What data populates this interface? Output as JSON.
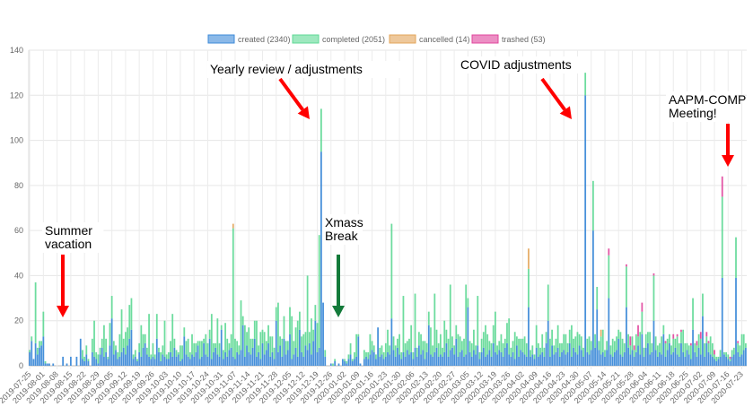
{
  "chart_data": {
    "type": "bar",
    "stacked": true,
    "x_start": "2019-07-25",
    "x_tick_labels": [
      "2019-07-25",
      "2019-08-01",
      "2019-08-08",
      "2019-08-15",
      "2019-08-22",
      "2019-08-29",
      "2019-09-05",
      "2019-09-12",
      "2019-09-19",
      "2019-09-26",
      "2019-10-03",
      "2019-10-10",
      "2019-10-17",
      "2019-10-24",
      "2019-10-31",
      "2019-11-07",
      "2019-11-14",
      "2019-11-21",
      "2019-11-28",
      "2019-12-05",
      "2019-12-12",
      "2019-12-19",
      "2019-12-26",
      "2020-01-02",
      "2020-01-09",
      "2020-01-16",
      "2020-01-23",
      "2020-01-30",
      "2020-02-06",
      "2020-02-13",
      "2020-02-20",
      "2020-02-27",
      "2020-03-05",
      "2020-03-12",
      "2020-03-19",
      "2020-03-26",
      "2020-04-02",
      "2020-04-09",
      "2020-04-16",
      "2020-04-23",
      "2020-04-30",
      "2020-05-07",
      "2020-05-14",
      "2020-05-21",
      "2020-05-28",
      "2020-06-04",
      "2020-06-11",
      "2020-06-18",
      "2020-06-25",
      "2020-07-02",
      "2020-07-09",
      "2020-07-16",
      "2020-07-23"
    ],
    "y_ticks": [
      "0",
      "20",
      "40",
      "60",
      "80",
      "100",
      "120",
      "140"
    ],
    "ylim": [
      0,
      140
    ],
    "grid": true,
    "legend_position": "top",
    "legend": [
      "created (2340)",
      "completed (2051)",
      "cancelled (14)",
      "trashed (53)"
    ],
    "colors": {
      "created": "#3d8ad8",
      "completed": "#5dd894",
      "cancelled": "#e3a458",
      "trashed": "#e0449c"
    },
    "series": [
      {
        "name": "created",
        "values": [
          6,
          11,
          3,
          10,
          5,
          8,
          9,
          13,
          1,
          1,
          1,
          0,
          1,
          0,
          0,
          0,
          0,
          4,
          0,
          1,
          0,
          4,
          0,
          0,
          4,
          0,
          12,
          3,
          2,
          5,
          2,
          0,
          6,
          4,
          3,
          1,
          5,
          8,
          4,
          6,
          3,
          9,
          21,
          5,
          7,
          3,
          4,
          6,
          8,
          5,
          9,
          12,
          16,
          3,
          4,
          2,
          6,
          4,
          8,
          10,
          5,
          4,
          3,
          4,
          3,
          12,
          6,
          2,
          5,
          4,
          3,
          3,
          6,
          4,
          8,
          4,
          5,
          2,
          3,
          13,
          5,
          4,
          3,
          5,
          4,
          6,
          9,
          3,
          4,
          10,
          5,
          4,
          12,
          3,
          6,
          8,
          5,
          4,
          16,
          3,
          6,
          4,
          7,
          8,
          4,
          3,
          6,
          5,
          7,
          18,
          4,
          9,
          6,
          5,
          8,
          12,
          4,
          6,
          3,
          10,
          5,
          7,
          10,
          4,
          6,
          3,
          20,
          6,
          9,
          4,
          12,
          5,
          7,
          14,
          3,
          5,
          8,
          4,
          16,
          6,
          4,
          9,
          7,
          10,
          5,
          11,
          20,
          6,
          8,
          95,
          28,
          4,
          0,
          0,
          1,
          0,
          2,
          0,
          1,
          0,
          3,
          2,
          1,
          3,
          5,
          2,
          3,
          4,
          13,
          1,
          0,
          3,
          4,
          3,
          5,
          7,
          6,
          3,
          17,
          4,
          5,
          3,
          4,
          6,
          5,
          21,
          7,
          4,
          8,
          5,
          3,
          6,
          4,
          7,
          5,
          6,
          3,
          8,
          4,
          9,
          5,
          7,
          3,
          6,
          18,
          5,
          4,
          6,
          8,
          4,
          5,
          4,
          6,
          10,
          4,
          7,
          8,
          5,
          12,
          4,
          6,
          7,
          4,
          5,
          26,
          6,
          4,
          7,
          5,
          9,
          3,
          6,
          8,
          4,
          5,
          7,
          4,
          10,
          6,
          5,
          7,
          6,
          4,
          8,
          10,
          5,
          4,
          6,
          3,
          9,
          4,
          7,
          6,
          5,
          4,
          26,
          4,
          5,
          3,
          8,
          4,
          5,
          6,
          4,
          10,
          20,
          4,
          9,
          5,
          6,
          8,
          4,
          6,
          7,
          5,
          6,
          10,
          4,
          8,
          6,
          5,
          9,
          7,
          4,
          120,
          6,
          5,
          7,
          60,
          8,
          25,
          7,
          5,
          6,
          4,
          7,
          30,
          5,
          4,
          6,
          7,
          12,
          5,
          4,
          6,
          26,
          8,
          5,
          7,
          4,
          6,
          9,
          5,
          14,
          4,
          8,
          10,
          5,
          6,
          20,
          7,
          4,
          6,
          5,
          14,
          4,
          7,
          10,
          5,
          6,
          8,
          5,
          4,
          10,
          6,
          4,
          7,
          5,
          3,
          16,
          6,
          4,
          8,
          5,
          22,
          4,
          10,
          6,
          5,
          4,
          3,
          2,
          3,
          4,
          39,
          5,
          4,
          3,
          2,
          4,
          5,
          39,
          6,
          4,
          5,
          7,
          8
        ]
      },
      {
        "name": "completed",
        "values": [
          1,
          2,
          0,
          27,
          3,
          3,
          2,
          11,
          1,
          0,
          0,
          0,
          0,
          0,
          0,
          0,
          0,
          0,
          0,
          0,
          0,
          0,
          0,
          0,
          0,
          0,
          0,
          4,
          2,
          4,
          1,
          0,
          6,
          16,
          3,
          4,
          3,
          4,
          14,
          6,
          1,
          10,
          10,
          6,
          2,
          3,
          10,
          19,
          4,
          10,
          8,
          15,
          14,
          2,
          3,
          1,
          4,
          14,
          6,
          4,
          3,
          19,
          2,
          6,
          2,
          11,
          2,
          4,
          4,
          16,
          2,
          3,
          5,
          19,
          4,
          3,
          1,
          7,
          6,
          4,
          6,
          8,
          3,
          9,
          6,
          4,
          2,
          8,
          7,
          2,
          9,
          6,
          4,
          20,
          4,
          2,
          16,
          6,
          2,
          4,
          13,
          8,
          3,
          6,
          57,
          9,
          5,
          4,
          22,
          4,
          14,
          6,
          11,
          7,
          4,
          8,
          16,
          3,
          12,
          6,
          10,
          4,
          8,
          9,
          7,
          5,
          6,
          22,
          4,
          8,
          10,
          6,
          4,
          12,
          19,
          6,
          9,
          16,
          8,
          7,
          10,
          6,
          33,
          5,
          16,
          5,
          7,
          13,
          50,
          19,
          0,
          3,
          0,
          0,
          0,
          1,
          1,
          0,
          0,
          0,
          0,
          1,
          1,
          2,
          5,
          1,
          3,
          10,
          1,
          0,
          0,
          4,
          2,
          3,
          9,
          4,
          3,
          2,
          0,
          4,
          4,
          3,
          6,
          10,
          4,
          42,
          6,
          5,
          4,
          9,
          3,
          25,
          6,
          4,
          7,
          12,
          3,
          24,
          4,
          6,
          9,
          4,
          8,
          4,
          6,
          12,
          5,
          26,
          8,
          6,
          9,
          4,
          14,
          6,
          8,
          29,
          5,
          4,
          6,
          10,
          7,
          4,
          8,
          31,
          4,
          5,
          6,
          9,
          4,
          22,
          3,
          6,
          7,
          14,
          9,
          4,
          6,
          8,
          18,
          4,
          4,
          8,
          6,
          4,
          9,
          16,
          4,
          5,
          12,
          4,
          8,
          5,
          6,
          8,
          6,
          17,
          3,
          4,
          2,
          10,
          6,
          3,
          8,
          4,
          5,
          16,
          8,
          7,
          4,
          6,
          10,
          6,
          4,
          7,
          9,
          4,
          6,
          14,
          4,
          7,
          10,
          5,
          6,
          4,
          10,
          6,
          8,
          4,
          22,
          6,
          10,
          4,
          8,
          10,
          3,
          4,
          19,
          4,
          8,
          5,
          6,
          4,
          10,
          8,
          4,
          18,
          6,
          4,
          6,
          3,
          8,
          4,
          10,
          10,
          4,
          6,
          5,
          10,
          4,
          20,
          6,
          5,
          4,
          8,
          4,
          6,
          5,
          4,
          4,
          6,
          4,
          8,
          6,
          5,
          10,
          6,
          3,
          4,
          6,
          14,
          4,
          5,
          6,
          7,
          10,
          6,
          3,
          4,
          8,
          6,
          2,
          2,
          1,
          3,
          36,
          1,
          2,
          2,
          1,
          3,
          3,
          18,
          4,
          5,
          9,
          7,
          2
        ]
      },
      {
        "name": "cancelled",
        "sparse": {
          "104": 2,
          "255": 9,
          "292": 3
        }
      },
      {
        "name": "trashed",
        "sparse": {
          "296": 3,
          "305": 1,
          "307": 4,
          "309": 2,
          "311": 5,
          "313": 4,
          "319": 1,
          "325": 1,
          "329": 2,
          "331": 1,
          "333": 1,
          "338": 1,
          "341": 2,
          "343": 3,
          "346": 2,
          "347": 1,
          "350": 2,
          "354": 9,
          "358": 1,
          "362": 1
        }
      }
    ],
    "annotations": [
      {
        "id": "yearly",
        "lines": [
          "Yearly review / adjustments"
        ],
        "arrow_color": "#ff0000"
      },
      {
        "id": "covid",
        "lines": [
          "COVID adjustments"
        ],
        "arrow_color": "#ff0000"
      },
      {
        "id": "aapm",
        "lines": [
          "AAPM-COMP",
          "Meeting!"
        ],
        "arrow_color": "#ff0000"
      },
      {
        "id": "summer",
        "lines": [
          "Summer",
          "vacation"
        ],
        "arrow_color": "#ff0000"
      },
      {
        "id": "xmass",
        "lines": [
          "Xmass",
          "Break"
        ],
        "arrow_color": "#137a3a"
      }
    ]
  }
}
